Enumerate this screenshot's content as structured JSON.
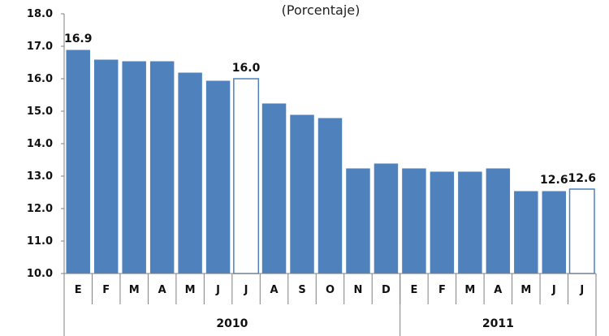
{
  "chart_data": {
    "type": "bar",
    "subtitle": "(Porcentaje)",
    "categories": [
      "E",
      "F",
      "M",
      "A",
      "M",
      "J",
      "J",
      "A",
      "S",
      "O",
      "N",
      "D",
      "E",
      "F",
      "M",
      "A",
      "M",
      "J",
      "J"
    ],
    "values": [
      16.9,
      16.6,
      16.55,
      16.55,
      16.2,
      15.95,
      16.0,
      15.25,
      14.9,
      14.8,
      13.25,
      13.4,
      13.25,
      13.15,
      13.15,
      13.25,
      12.55,
      12.55,
      12.6
    ],
    "highlight": [
      6,
      18
    ],
    "data_labels": [
      {
        "index": 0,
        "text": "16.9"
      },
      {
        "index": 6,
        "text": "16.0"
      },
      {
        "index": 17,
        "text": "12.6"
      },
      {
        "index": 18,
        "text": "12.6"
      }
    ],
    "groups": [
      {
        "label": "2010",
        "count": 12
      },
      {
        "label": "2011",
        "count": 7
      }
    ],
    "ylim": [
      10.0,
      18.0
    ],
    "yticks": [
      "10.0",
      "11.0",
      "12.0",
      "13.0",
      "14.0",
      "15.0",
      "16.0",
      "17.0",
      "18.0"
    ],
    "grid": false,
    "colors": {
      "bar": "#4F81BD",
      "bar_edge": "#ffffff",
      "highlight_fill": "#ffffff",
      "highlight_edge": "#4F81BD",
      "axis": "#808080"
    }
  }
}
